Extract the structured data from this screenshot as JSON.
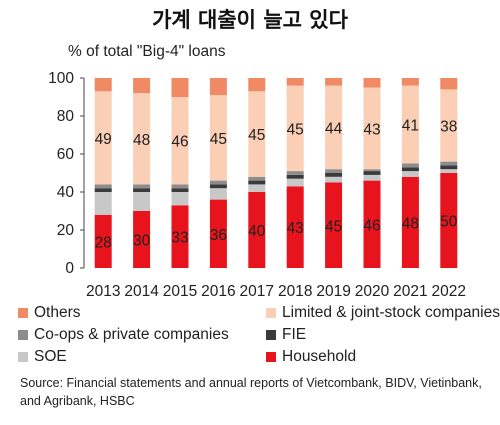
{
  "title": "가계 대출이 늘고 있다",
  "subtitle": "% of total \"Big-4\" loans",
  "source": "Source: Financial statements and annual reports of Vietcombank, BIDV, Vietinbank, and Agribank, HSBC",
  "chart_data": {
    "type": "bar",
    "stacked": true,
    "categories": [
      "2013",
      "2014",
      "2015",
      "2016",
      "2017",
      "2018",
      "2019",
      "2020",
      "2021",
      "2022"
    ],
    "ylim": [
      0,
      100
    ],
    "yticks": [
      0,
      20,
      40,
      60,
      80,
      100
    ],
    "series": [
      {
        "name": "Household",
        "color": "#e8141d",
        "values": [
          28,
          30,
          33,
          36,
          40,
          43,
          45,
          46,
          48,
          50
        ],
        "labels": [
          "28",
          "30",
          "33",
          "36",
          "40",
          "43",
          "45",
          "46",
          "48",
          "50"
        ]
      },
      {
        "name": "SOE",
        "color": "#c8c8c8",
        "values": [
          12,
          10,
          7,
          6,
          4,
          4,
          3,
          3,
          3,
          2
        ]
      },
      {
        "name": "FIE",
        "color": "#3a3a3a",
        "values": [
          2,
          2,
          2,
          2,
          2,
          2,
          2,
          2,
          2,
          2
        ]
      },
      {
        "name": "Co-ops & private companies",
        "color": "#8c8c8c",
        "values": [
          2,
          2,
          2,
          2,
          2,
          2,
          2,
          1,
          2,
          2
        ]
      },
      {
        "name": "Limited & joint-stock companies",
        "color": "#fbcfb6",
        "values": [
          49,
          48,
          46,
          45,
          45,
          45,
          44,
          43,
          41,
          38
        ],
        "labels": [
          "49",
          "48",
          "46",
          "45",
          "45",
          "45",
          "44",
          "43",
          "41",
          "38"
        ]
      },
      {
        "name": "Others",
        "color": "#f08a64",
        "values": [
          7,
          8,
          10,
          9,
          7,
          4,
          4,
          5,
          4,
          6
        ]
      }
    ],
    "legend": [
      {
        "name": "Others",
        "color": "#f08a64"
      },
      {
        "name": "Limited & joint-stock companies",
        "color": "#fbcfb6"
      },
      {
        "name": "Co-ops & private companies",
        "color": "#8c8c8c"
      },
      {
        "name": "FIE",
        "color": "#3a3a3a"
      },
      {
        "name": "SOE",
        "color": "#c8c8c8"
      },
      {
        "name": "Household",
        "color": "#e8141d"
      }
    ]
  }
}
